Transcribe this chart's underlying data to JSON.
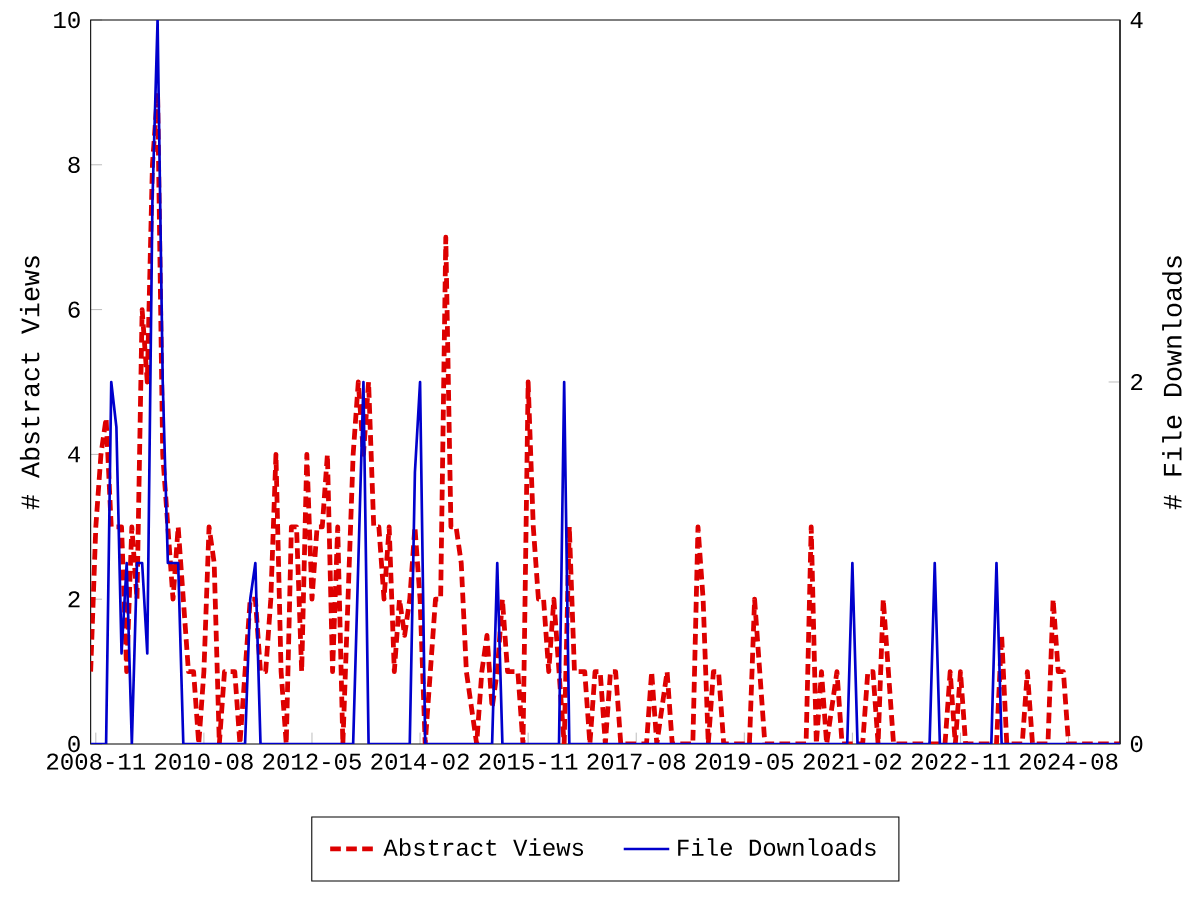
{
  "chart_data": {
    "type": "line",
    "ylabel": "# Abstract Views",
    "y2label": "# File Downloads",
    "xlim": [
      "2008-10",
      "2025-06"
    ],
    "ylim": [
      0,
      10
    ],
    "yticks": [
      0,
      2,
      4,
      6,
      8,
      10
    ],
    "y2lim": [
      0,
      4
    ],
    "y2ticks": [
      0,
      2,
      4
    ],
    "xticks": [
      {
        "value": "2008-11",
        "label": "2008-11"
      },
      {
        "value": "2010-08",
        "label": "2010-08"
      },
      {
        "value": "2012-05",
        "label": "2012-05"
      },
      {
        "value": "2014-02",
        "label": "2014-02"
      },
      {
        "value": "2015-11",
        "label": "2015-11"
      },
      {
        "value": "2017-08",
        "label": "2017-08"
      },
      {
        "value": "2019-05",
        "label": "2019-05"
      },
      {
        "value": "2021-02",
        "label": "2021-02"
      },
      {
        "value": "2022-11",
        "label": "2022-11"
      },
      {
        "value": "2024-08",
        "label": "2024-08"
      }
    ],
    "legend": "bottom",
    "grid": false,
    "series": [
      {
        "name": "Abstract Views",
        "color": "#dd0000",
        "line_style": "dashed",
        "axis": "y",
        "x": [
          "2008-10",
          "2008-11",
          "2008-12",
          "2009-01",
          "2009-02",
          "2009-03",
          "2009-04",
          "2009-05",
          "2009-06",
          "2009-07",
          "2009-08",
          "2009-09",
          "2009-10",
          "2009-11",
          "2009-12",
          "2010-01",
          "2010-02",
          "2010-03",
          "2010-04",
          "2010-05",
          "2010-06",
          "2010-07",
          "2010-08",
          "2010-09",
          "2010-10",
          "2010-11",
          "2010-12",
          "2011-01",
          "2011-02",
          "2011-03",
          "2011-04",
          "2011-05",
          "2011-06",
          "2011-07",
          "2011-08",
          "2011-09",
          "2011-10",
          "2011-11",
          "2011-12",
          "2012-01",
          "2012-02",
          "2012-03",
          "2012-04",
          "2012-05",
          "2012-06",
          "2012-07",
          "2012-08",
          "2012-09",
          "2012-10",
          "2012-11",
          "2012-12",
          "2013-01",
          "2013-02",
          "2013-03",
          "2013-04",
          "2013-05",
          "2013-06",
          "2013-07",
          "2013-08",
          "2013-09",
          "2013-10",
          "2013-11",
          "2013-12",
          "2014-01",
          "2014-02",
          "2014-03",
          "2014-04",
          "2014-05",
          "2014-06",
          "2014-07",
          "2014-08",
          "2014-09",
          "2014-10",
          "2014-11",
          "2014-12",
          "2015-01",
          "2015-02",
          "2015-03",
          "2015-04",
          "2015-05",
          "2015-06",
          "2015-07",
          "2015-08",
          "2015-09",
          "2015-10",
          "2015-11",
          "2015-12",
          "2016-01",
          "2016-02",
          "2016-03",
          "2016-04",
          "2016-05",
          "2016-06",
          "2016-07",
          "2016-08",
          "2016-09",
          "2016-10",
          "2016-11",
          "2016-12",
          "2017-01",
          "2017-02",
          "2017-03",
          "2017-04",
          "2017-05",
          "2017-10",
          "2017-11",
          "2017-12",
          "2018-02",
          "2018-03",
          "2018-07",
          "2018-08",
          "2018-09",
          "2018-10",
          "2018-11",
          "2018-12",
          "2019-01",
          "2019-06",
          "2019-07",
          "2019-08",
          "2019-09",
          "2020-05",
          "2020-06",
          "2020-07",
          "2020-08",
          "2020-09",
          "2020-11",
          "2020-12",
          "2021-04",
          "2021-05",
          "2021-06",
          "2021-07",
          "2021-08",
          "2021-09",
          "2021-10",
          "2022-08",
          "2022-09",
          "2022-10",
          "2022-11",
          "2022-12",
          "2023-06",
          "2023-07",
          "2023-08",
          "2023-11",
          "2023-12",
          "2024-01",
          "2024-04",
          "2024-05",
          "2024-06",
          "2024-07",
          "2024-08",
          "2025-06"
        ],
        "values": [
          1,
          3,
          4,
          4.5,
          3,
          3,
          3,
          1,
          3,
          2,
          6,
          5,
          8,
          9,
          4,
          3,
          2,
          3,
          2,
          1,
          1,
          0,
          1,
          3,
          2.5,
          0,
          1,
          1,
          1,
          0,
          1,
          2,
          2,
          1,
          1,
          2,
          4,
          1,
          0,
          3,
          3,
          1,
          4,
          2,
          3,
          3,
          4,
          1,
          3,
          0,
          2,
          4,
          5,
          4,
          5,
          3,
          3,
          2,
          3,
          1,
          2,
          1.5,
          2,
          3,
          2,
          0,
          1,
          2,
          2,
          7,
          3,
          3,
          2.5,
          1,
          0.5,
          0,
          1,
          1.5,
          0.5,
          1,
          2,
          1,
          1,
          1,
          0,
          5,
          3,
          2,
          2,
          1,
          2,
          1,
          0,
          3,
          1,
          1,
          1,
          0,
          1,
          1,
          0,
          1,
          1,
          0,
          0,
          1,
          0,
          1,
          0,
          0,
          3,
          2,
          0,
          1,
          1,
          0,
          0,
          2,
          1,
          0,
          0,
          3,
          0,
          1,
          0,
          1,
          0,
          0,
          1,
          1,
          0,
          2,
          1,
          0,
          0,
          1,
          0,
          1,
          0,
          0,
          1.5,
          0,
          0,
          1,
          0,
          0,
          2,
          1,
          1,
          0,
          0
        ]
      },
      {
        "name": "File Downloads",
        "color": "#0000cc",
        "line_style": "solid",
        "axis": "y2",
        "x": [
          "2008-10",
          "2009-01",
          "2009-02",
          "2009-03",
          "2009-04",
          "2009-05",
          "2009-06",
          "2009-07",
          "2009-08",
          "2009-09",
          "2009-10",
          "2009-11",
          "2009-12",
          "2010-01",
          "2010-02",
          "2010-03",
          "2010-04",
          "2011-04",
          "2011-05",
          "2011-06",
          "2011-07",
          "2013-01",
          "2013-02",
          "2013-03",
          "2013-04",
          "2013-12",
          "2014-01",
          "2014-02",
          "2014-03",
          "2015-04",
          "2015-05",
          "2015-06",
          "2016-05",
          "2016-06",
          "2016-07",
          "2021-01",
          "2021-02",
          "2021-03",
          "2022-05",
          "2022-06",
          "2022-07",
          "2023-05",
          "2023-06",
          "2023-07",
          "2025-06"
        ],
        "values": [
          0,
          0,
          2,
          1.75,
          0.5,
          1,
          0,
          1,
          1,
          0.5,
          3,
          4,
          2,
          1,
          1,
          1,
          0,
          0,
          0.8,
          1,
          0,
          0,
          1,
          2,
          0,
          0,
          1.5,
          2,
          0,
          0,
          1,
          0,
          0,
          2,
          0,
          0,
          1,
          0,
          0,
          1,
          0,
          0,
          1,
          0,
          0
        ]
      }
    ]
  }
}
